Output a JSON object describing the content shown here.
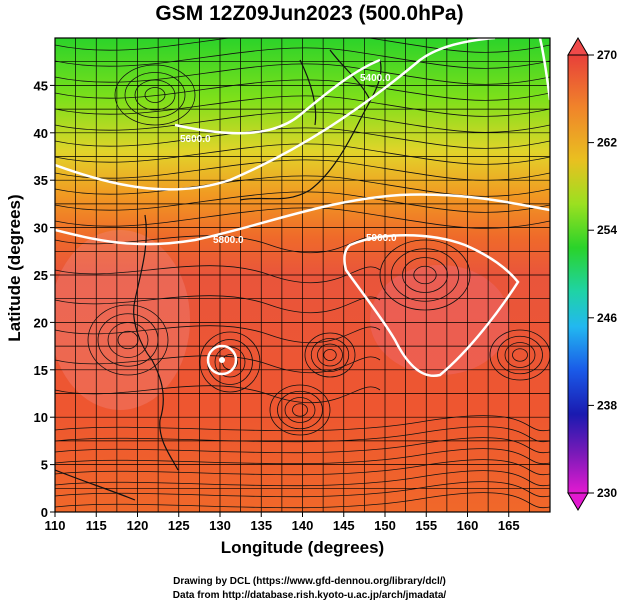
{
  "title": "GSM 12Z09Jun2023 (500.0hPa)",
  "axes": {
    "xlabel": "Longitude (degrees)",
    "ylabel": "Latitude  (degrees)",
    "xticks": [
      "110",
      "115",
      "120",
      "125",
      "130",
      "135",
      "140",
      "145",
      "150",
      "155",
      "160",
      "165"
    ],
    "yticks": [
      "0",
      "5",
      "10",
      "15",
      "20",
      "25",
      "30",
      "35",
      "40",
      "45"
    ],
    "xlim": [
      110,
      170
    ],
    "ylim": [
      0,
      50
    ]
  },
  "colorbar": {
    "ticks": [
      "270",
      "262",
      "254",
      "246",
      "238",
      "230"
    ],
    "range": [
      230,
      270
    ]
  },
  "contour_labels": [
    "5400.0",
    "5600.0",
    "5800.0",
    "5900.0"
  ],
  "credits": {
    "line1": "Drawing by DCL (https://www.gfd-dennou.org/library/dcl/)",
    "line2": "Data from http://database.rish.kyoto-u.ac.jp/arch/jmadata/"
  }
}
